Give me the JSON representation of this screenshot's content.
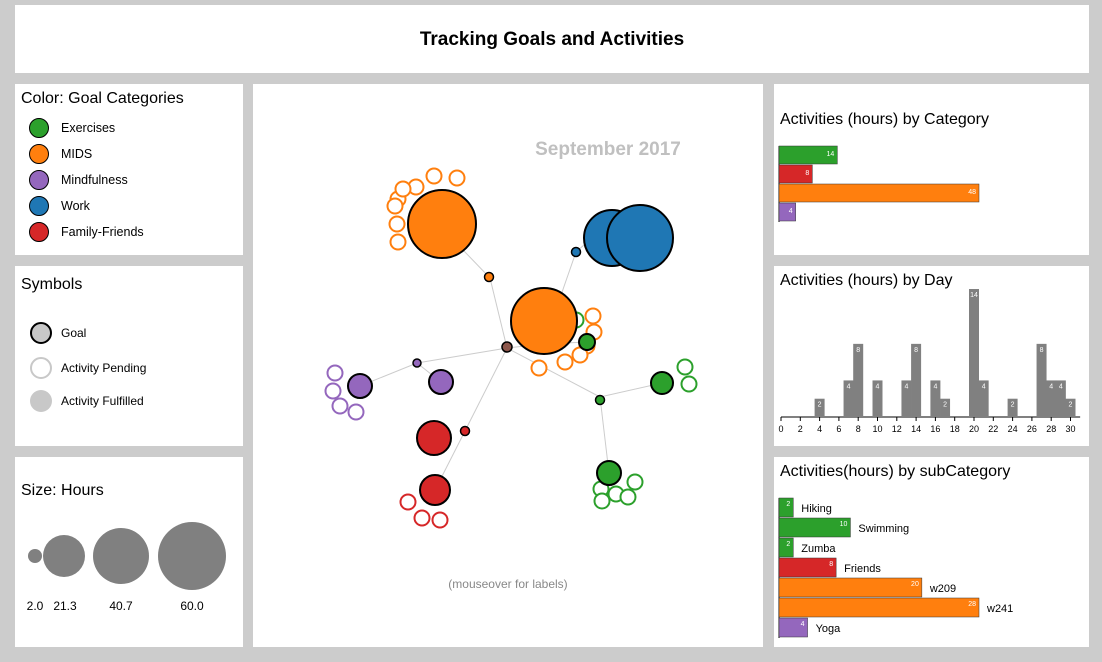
{
  "header": {
    "title": "Tracking Goals and Activities"
  },
  "color_legend": {
    "title": "Color: Goal Categories",
    "items": [
      {
        "label": "Exercises",
        "color": "#2ca02c"
      },
      {
        "label": "MIDS",
        "color": "#ff7f0e"
      },
      {
        "label": "Mindfulness",
        "color": "#9467bd"
      },
      {
        "label": "Work",
        "color": "#1f77b4"
      },
      {
        "label": "Family-Friends",
        "color": "#d62728"
      }
    ]
  },
  "symbols_legend": {
    "title": "Symbols",
    "goal": "Goal",
    "pending": "Activity Pending",
    "fulfilled": "Activity Fulfilled"
  },
  "size_legend": {
    "title": "Size: Hours",
    "values": [
      "2.0",
      "21.3",
      "40.7",
      "60.0"
    ]
  },
  "network": {
    "month_label": "September 2017",
    "hint": "(mouseover for labels)"
  },
  "chart_data": [
    {
      "type": "bar",
      "title": "Activities (hours) by Category",
      "orientation": "horizontal",
      "categories": [
        "Exercises",
        "Family-Friends",
        "MIDS",
        "Mindfulness"
      ],
      "values": [
        14,
        8,
        48,
        4
      ],
      "colors": [
        "#2ca02c",
        "#d62728",
        "#ff7f0e",
        "#9467bd"
      ]
    },
    {
      "type": "bar",
      "title": "Activities (hours) by Day",
      "x": [
        4,
        7,
        8,
        10,
        13,
        14,
        16,
        17,
        20,
        21,
        24,
        27,
        28,
        29,
        30
      ],
      "values": [
        2,
        4,
        8,
        4,
        4,
        8,
        4,
        2,
        14,
        4,
        2,
        8,
        4,
        4,
        2
      ],
      "xticks": [
        0,
        2,
        4,
        6,
        8,
        10,
        12,
        14,
        16,
        18,
        20,
        22,
        24,
        26,
        28,
        30
      ],
      "xlim": [
        0,
        31
      ],
      "color": "#808080"
    },
    {
      "type": "bar",
      "title": "Activities(hours) by subCategory",
      "orientation": "horizontal",
      "categories": [
        "Hiking",
        "Swimming",
        "Zumba",
        "Friends",
        "w209",
        "w241",
        "Yoga"
      ],
      "values": [
        2,
        10,
        2,
        8,
        20,
        28,
        4
      ],
      "colors": [
        "#2ca02c",
        "#2ca02c",
        "#2ca02c",
        "#d62728",
        "#ff7f0e",
        "#ff7f0e",
        "#9467bd"
      ]
    }
  ]
}
